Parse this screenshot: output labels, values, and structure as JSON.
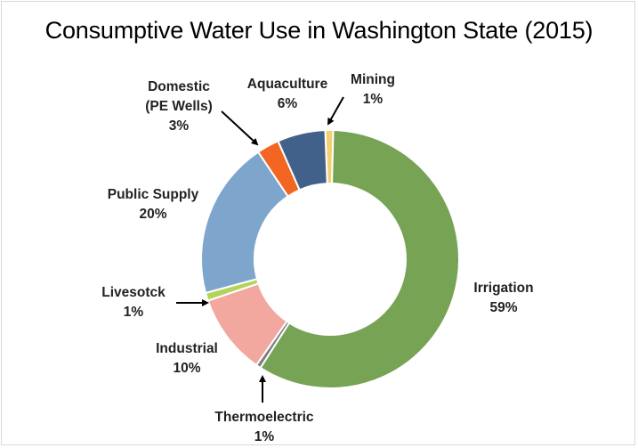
{
  "chart_data": {
    "type": "pie",
    "title": "Consumptive Water Use in Washington State (2015)",
    "donut": true,
    "slices": [
      {
        "label": "Mining",
        "pct_label": "1%",
        "value": 1.0,
        "color": "#F5CF73"
      },
      {
        "label": "Irrigation",
        "pct_label": "59%",
        "value": 58.7,
        "color": "#77A355"
      },
      {
        "label": "Thermoelectric",
        "pct_label": "1%",
        "value": 0.6,
        "color": "#7F7F7F"
      },
      {
        "label": "Industrial",
        "pct_label": "10%",
        "value": 10.1,
        "color": "#F2A79F"
      },
      {
        "label": "Livesotck",
        "pct_label": "1%",
        "value": 1.0,
        "color": "#B5D35A"
      },
      {
        "label": "Public Supply",
        "pct_label": "20%",
        "value": 19.8,
        "color": "#7EA6CC"
      },
      {
        "label": "Domestic (PE Wells)",
        "pct_label": "3%",
        "value": 2.8,
        "color": "#F26522"
      },
      {
        "label": "Aquaculture",
        "pct_label": "6%",
        "value": 6.0,
        "color": "#41618A"
      }
    ]
  }
}
